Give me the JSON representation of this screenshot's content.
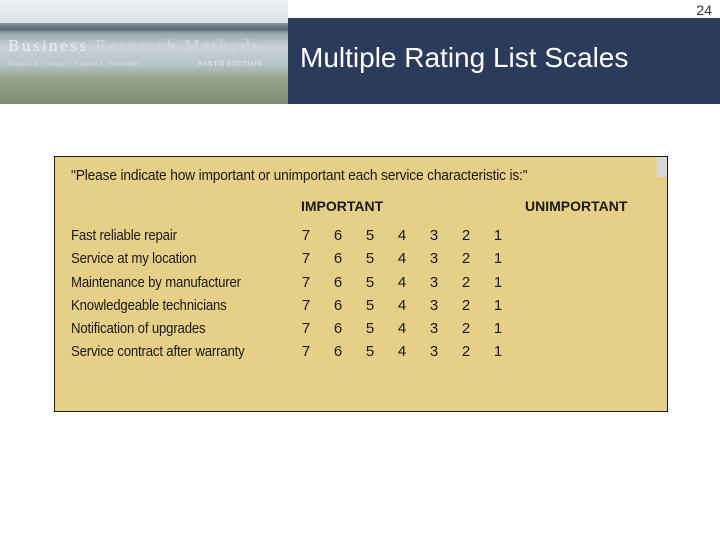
{
  "page_number": "24",
  "logo": {
    "title_business": "Business",
    "title_research": "Research",
    "title_methods": "Methods",
    "authors": "Donald R. Cooper / Pamela S. Schindler",
    "edition": "NINTH EDITION"
  },
  "slide_title": "Multiple Rating List Scales",
  "table": {
    "type": "rating-scale-table",
    "question": "\"Please indicate how important or unimportant each service characteristic is:\"",
    "header_left": "IMPORTANT",
    "header_right": "UNIMPORTANT",
    "scale_values": [
      "7",
      "6",
      "5",
      "4",
      "3",
      "2",
      "1"
    ],
    "rows": [
      "Fast reliable repair",
      "Service at my location",
      "Maintenance by manufacturer",
      "Knowledgeable technicians",
      "Notification of upgrades",
      "Service contract after warranty"
    ],
    "colors": {
      "panel_bg": "#e6cf87",
      "panel_border": "#1a1a1a",
      "text": "#1a1a1a"
    },
    "font_family": "Arial",
    "label_fontsize": 15,
    "header_fontsize": 14
  },
  "colors": {
    "header_band": "#2b3b5c",
    "page_bg": "#ffffff",
    "title_color": "#ffffff"
  }
}
